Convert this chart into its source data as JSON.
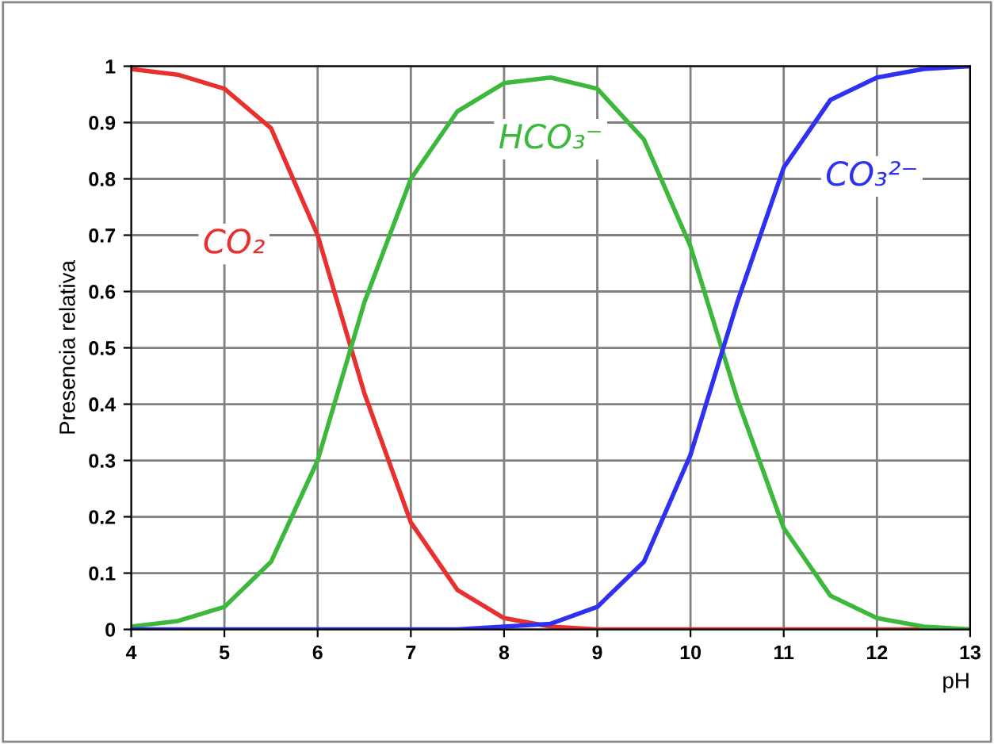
{
  "chart_data": {
    "type": "line",
    "xlabel": "pH",
    "ylabel": "Presencia relativa",
    "x": [
      4,
      4.5,
      5,
      5.5,
      6,
      6.5,
      7,
      7.5,
      8,
      8.5,
      9,
      9.5,
      10,
      10.5,
      11,
      11.5,
      12,
      12.5,
      13
    ],
    "series": [
      {
        "name": "CO₂",
        "color": "#e8312f",
        "values": [
          0.995,
          0.985,
          0.96,
          0.89,
          0.7,
          0.42,
          0.19,
          0.07,
          0.02,
          0.005,
          0,
          0,
          0,
          0,
          0,
          0,
          0,
          0,
          0
        ]
      },
      {
        "name": "HCO₃⁻",
        "color": "#3cb83c",
        "values": [
          0.005,
          0.015,
          0.04,
          0.12,
          0.3,
          0.58,
          0.8,
          0.92,
          0.97,
          0.98,
          0.96,
          0.87,
          0.68,
          0.41,
          0.18,
          0.06,
          0.02,
          0.005,
          0
        ]
      },
      {
        "name": "CO₃²⁻",
        "color": "#3030f0",
        "values": [
          0,
          0,
          0,
          0,
          0,
          0,
          0,
          0,
          0.005,
          0.01,
          0.04,
          0.12,
          0.31,
          0.58,
          0.82,
          0.94,
          0.98,
          0.995,
          1
        ]
      }
    ],
    "xlim": [
      4,
      13
    ],
    "xticks": [
      4,
      5,
      6,
      7,
      8,
      9,
      10,
      11,
      12,
      13
    ],
    "ylim": [
      0,
      1
    ],
    "yticks": [
      0,
      0.1,
      0.2,
      0.3,
      0.4,
      0.5,
      0.6,
      0.7,
      0.8,
      0.9,
      1
    ],
    "grid": true
  }
}
